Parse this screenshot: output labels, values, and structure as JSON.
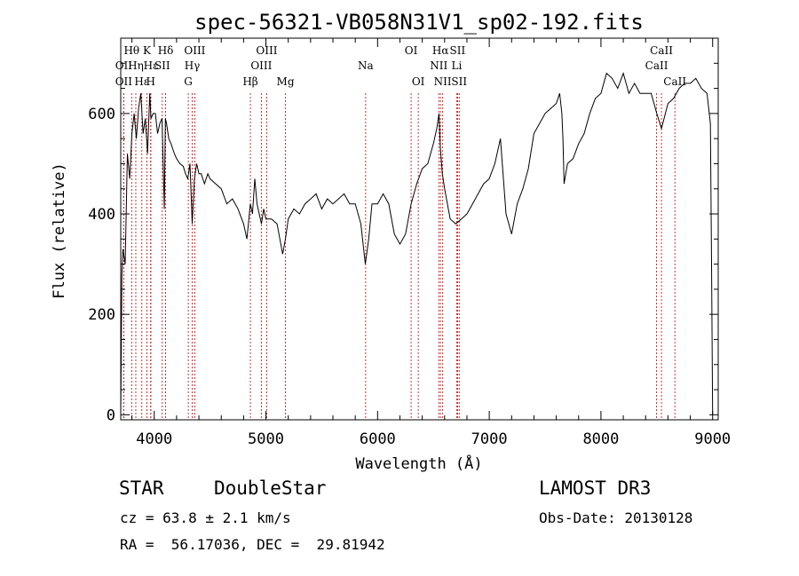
{
  "chart_data": {
    "type": "line",
    "title": "spec-56321-VB058N31V1_sp02-192.fits",
    "xlabel": "Wavelength (Å)",
    "ylabel": "Flux (relative)",
    "xlim": [
      3700,
      9050
    ],
    "ylim": [
      -10,
      750
    ],
    "xticks": [
      4000,
      5000,
      6000,
      7000,
      8000,
      9000
    ],
    "yticks": [
      0,
      200,
      400,
      600
    ],
    "series": [
      {
        "x": [
          3700,
          3710,
          3720,
          3740,
          3760,
          3780,
          3800,
          3820,
          3840,
          3860,
          3880,
          3900,
          3920,
          3940,
          3960,
          3970,
          3990,
          4010,
          4030,
          4050,
          4070,
          4090,
          4100,
          4110,
          4130,
          4150,
          4180,
          4200,
          4230,
          4260,
          4280,
          4300,
          4320,
          4340,
          4360,
          4380,
          4400,
          4420,
          4450,
          4480,
          4500,
          4550,
          4600,
          4650,
          4700,
          4750,
          4800,
          4830,
          4861,
          4880,
          4900,
          4920,
          4940,
          4960,
          4980,
          5000,
          5050,
          5100,
          5150,
          5175,
          5200,
          5250,
          5300,
          5350,
          5400,
          5450,
          5500,
          5550,
          5600,
          5650,
          5700,
          5750,
          5800,
          5850,
          5890,
          5920,
          5950,
          6000,
          6050,
          6100,
          6150,
          6200,
          6250,
          6300,
          6350,
          6400,
          6450,
          6500,
          6530,
          6550,
          6563,
          6580,
          6600,
          6650,
          6700,
          6750,
          6800,
          6850,
          6900,
          6950,
          7000,
          7050,
          7100,
          7150,
          7200,
          7250,
          7300,
          7350,
          7400,
          7450,
          7500,
          7550,
          7600,
          7630,
          7650,
          7660,
          7670,
          7700,
          7750,
          7800,
          7850,
          7900,
          7950,
          8000,
          8050,
          8100,
          8150,
          8200,
          8250,
          8300,
          8350,
          8400,
          8450,
          8500,
          8542,
          8600,
          8650,
          8700,
          8750,
          8800,
          8850,
          8900,
          8950,
          8980,
          8990,
          9000
        ],
        "values": [
          0,
          280,
          330,
          300,
          520,
          470,
          560,
          600,
          550,
          610,
          640,
          560,
          590,
          520,
          640,
          590,
          600,
          600,
          560,
          580,
          590,
          410,
          590,
          580,
          550,
          540,
          520,
          510,
          500,
          495,
          480,
          470,
          500,
          380,
          470,
          500,
          480,
          480,
          460,
          480,
          470,
          460,
          450,
          420,
          430,
          410,
          380,
          350,
          420,
          400,
          470,
          420,
          400,
          380,
          410,
          390,
          390,
          380,
          320,
          350,
          390,
          410,
          400,
          420,
          430,
          440,
          410,
          430,
          420,
          430,
          440,
          420,
          420,
          380,
          300,
          350,
          420,
          420,
          440,
          420,
          360,
          340,
          360,
          420,
          460,
          490,
          500,
          540,
          570,
          600,
          530,
          480,
          450,
          390,
          380,
          390,
          400,
          420,
          440,
          460,
          470,
          500,
          550,
          400,
          360,
          420,
          450,
          490,
          560,
          580,
          600,
          610,
          620,
          640,
          600,
          550,
          460,
          500,
          510,
          540,
          560,
          600,
          630,
          640,
          680,
          670,
          650,
          680,
          640,
          660,
          640,
          640,
          640,
          600,
          570,
          620,
          630,
          650,
          660,
          660,
          670,
          650,
          640,
          580,
          300,
          0
        ]
      }
    ],
    "lines": [
      {
        "label": "Hθ",
        "x": 3798,
        "row": 1
      },
      {
        "label": "OII",
        "x": 3727,
        "row": 2
      },
      {
        "label": "OII",
        "x": 3727,
        "row": 3
      },
      {
        "label": "Hη",
        "x": 3835,
        "row": 2
      },
      {
        "label": "Hε",
        "x": 3889,
        "row": 3
      },
      {
        "label": "K",
        "x": 3934,
        "row": 1
      },
      {
        "label": "Hε",
        "x": 3970,
        "row": 2
      },
      {
        "label": "H",
        "x": 3968,
        "row": 3
      },
      {
        "label": "SII",
        "x": 4072,
        "row": 2
      },
      {
        "label": "Hδ",
        "x": 4102,
        "row": 1
      },
      {
        "label": "OIII",
        "x": 4363,
        "row": 1
      },
      {
        "label": "Hγ",
        "x": 4340,
        "row": 2
      },
      {
        "label": "G",
        "x": 4305,
        "row": 3
      },
      {
        "label": "Hβ",
        "x": 4861,
        "row": 3
      },
      {
        "label": "OIII",
        "x": 5007,
        "row": 1
      },
      {
        "label": "OIII",
        "x": 4959,
        "row": 2
      },
      {
        "label": "Mg",
        "x": 5175,
        "row": 3
      },
      {
        "label": "Na",
        "x": 5893,
        "row": 2
      },
      {
        "label": "OI",
        "x": 6300,
        "row": 1
      },
      {
        "label": "OI",
        "x": 6364,
        "row": 3
      },
      {
        "label": "Hα",
        "x": 6563,
        "row": 1
      },
      {
        "label": "NII",
        "x": 6548,
        "row": 2
      },
      {
        "label": "NII",
        "x": 6583,
        "row": 3
      },
      {
        "label": "SII",
        "x": 6716,
        "row": 1
      },
      {
        "label": "Li",
        "x": 6708,
        "row": 2
      },
      {
        "label": "SII",
        "x": 6731,
        "row": 3
      },
      {
        "label": "CaII",
        "x": 8542,
        "row": 1
      },
      {
        "label": "CaII",
        "x": 8498,
        "row": 2
      },
      {
        "label": "CaII",
        "x": 8662,
        "row": 3
      }
    ]
  },
  "info": {
    "class": "STAR",
    "subclass": "DoubleStar",
    "survey": "LAMOST DR3",
    "cz": "cz = 63.8 ± 2.1 km/s",
    "obsdate": "Obs-Date: 20130128",
    "radec": "RA =  56.17036, DEC =  29.81942"
  }
}
